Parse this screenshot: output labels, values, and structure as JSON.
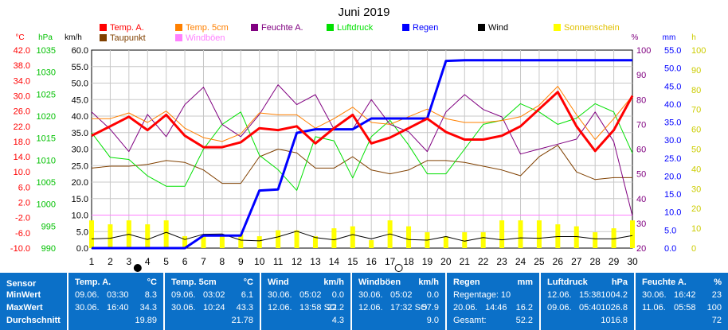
{
  "title": "Juni 2019",
  "axes": {
    "temp_unit": "°C",
    "press_unit": "hPa",
    "wind_unit": "km/h",
    "humidity_unit": "%",
    "rain_unit": "mm",
    "sun_unit": "h",
    "temp_ticks": [
      "42.0",
      "38.0",
      "34.0",
      "30.0",
      "26.0",
      "22.0",
      "18.0",
      "14.0",
      "10.0",
      "6.0",
      "2.0",
      "-2.0",
      "-6.0",
      "-10.0"
    ],
    "press_ticks": [
      "1035",
      "1030",
      "1025",
      "1020",
      "1015",
      "1010",
      "1005",
      "1000",
      "995",
      "990"
    ],
    "wind_ticks": [
      "60.0",
      "55.0",
      "50.0",
      "45.0",
      "40.0",
      "35.0",
      "30.0",
      "25.0",
      "20.0",
      "15.0",
      "10.0",
      "5.0",
      "0.0"
    ],
    "humidity_ticks": [
      "100",
      "90",
      "80",
      "70",
      "60",
      "50",
      "40",
      "30",
      "20"
    ],
    "rain_ticks": [
      "55.0",
      "50.0",
      "45.0",
      "40.0",
      "35.0",
      "30.0",
      "25.0",
      "20.0",
      "15.0",
      "10.0",
      "5.0",
      "0.0"
    ],
    "sun_ticks": [
      "100",
      "90",
      "80",
      "70",
      "60",
      "50",
      "40",
      "30",
      "20",
      "10",
      "0"
    ]
  },
  "legend": [
    {
      "label": "Temp. A.",
      "color": "#ff0000"
    },
    {
      "label": "Temp. 5cm",
      "color": "#ff8000"
    },
    {
      "label": "Feuchte A.",
      "color": "#800080"
    },
    {
      "label": "Luftdruck",
      "color": "#00e000"
    },
    {
      "label": "Regen",
      "color": "#0000ff"
    },
    {
      "label": "Wind",
      "color": "#000000"
    },
    {
      "label": "Sonnenschein",
      "color": "#ffff00"
    },
    {
      "label": "Taupunkt",
      "color": "#804000"
    },
    {
      "label": "Windböen",
      "color": "#ff80ff"
    }
  ],
  "chart_data": {
    "type": "line",
    "title": "Juni 2019",
    "x": [
      1,
      2,
      3,
      4,
      5,
      6,
      7,
      8,
      9,
      10,
      11,
      12,
      13,
      14,
      15,
      16,
      17,
      18,
      19,
      20,
      21,
      22,
      23,
      24,
      25,
      26,
      27,
      28,
      29,
      30
    ],
    "xlim": [
      1,
      30
    ],
    "series": [
      {
        "name": "Temp. A.",
        "unit": "°C",
        "color": "#ff0000",
        "values": [
          19.5,
          22.0,
          24.5,
          21.0,
          25.0,
          19.5,
          16.5,
          16.5,
          17.8,
          21.5,
          21.0,
          22.0,
          17.5,
          21.5,
          25.0,
          17.5,
          19.0,
          21.5,
          24.0,
          20.5,
          18.5,
          18.5,
          19.5,
          22.0,
          26.5,
          31.0,
          22.0,
          15.5,
          21.0,
          30.0
        ]
      },
      {
        "name": "Temp. 5cm",
        "unit": "°C",
        "color": "#ff8000",
        "values": [
          24.0,
          24.0,
          25.5,
          23.0,
          26.0,
          21.5,
          19.0,
          18.0,
          20.0,
          25.5,
          25.0,
          25.0,
          21.5,
          24.0,
          27.0,
          23.0,
          22.5,
          24.5,
          26.5,
          24.0,
          23.0,
          23.0,
          23.5,
          24.5,
          27.5,
          32.5,
          25.0,
          18.5,
          24.0,
          30.0
        ]
      },
      {
        "name": "Feuchte A.",
        "unit": "%",
        "color": "#800080",
        "values": [
          75,
          68,
          59,
          74,
          65,
          78,
          85,
          70,
          65,
          74,
          86,
          78,
          82,
          68,
          68,
          80,
          70,
          67,
          59,
          75,
          82,
          76,
          73,
          58,
          60,
          62,
          64,
          75,
          63,
          33
        ]
      },
      {
        "name": "Luftdruck",
        "unit": "hPa",
        "color": "#00e000",
        "values": [
          1018.0,
          1012.0,
          1011.5,
          1007.5,
          1005.0,
          1005.0,
          1014.0,
          1020.0,
          1023.0,
          1012.5,
          1009.0,
          1004.0,
          1017.0,
          1016.0,
          1007.0,
          1017.0,
          1021.0,
          1015.0,
          1008.0,
          1008.0,
          1014.0,
          1020.0,
          1021.0,
          1025.0,
          1023.0,
          1020.0,
          1021.5,
          1025.0,
          1023.0,
          1013.0
        ]
      },
      {
        "name": "Regen",
        "unit": "mm",
        "color": "#0000ff",
        "values": [
          0.0,
          0.0,
          0.0,
          0.0,
          0.0,
          0.0,
          3.5,
          3.5,
          3.5,
          16.0,
          16.3,
          32.0,
          33.0,
          33.0,
          33.0,
          36.0,
          36.0,
          36.0,
          36.0,
          52.0,
          52.2,
          52.2,
          52.2,
          52.2,
          52.2,
          52.2,
          52.2,
          52.2,
          52.2,
          52.2
        ]
      },
      {
        "name": "Wind",
        "unit": "km/h",
        "color": "#000000",
        "values": [
          2.8,
          3.0,
          4.2,
          2.6,
          4.8,
          2.6,
          4.2,
          4.3,
          2.4,
          2.2,
          3.4,
          5.1,
          3.2,
          2.5,
          4.1,
          2.8,
          4.3,
          2.6,
          2.4,
          3.5,
          2.1,
          3.2,
          2.5,
          3.1,
          3.0,
          3.5,
          3.5,
          2.8,
          2.8,
          3.8
        ]
      },
      {
        "name": "Windböen",
        "unit": "km/h",
        "color": "#ff80ff",
        "values": [
          10.0,
          10.0,
          10.0,
          10.0,
          10.0,
          10.0,
          10.0,
          10.0,
          10.0,
          10.0,
          10.0,
          10.0,
          10.0,
          10.0,
          10.0,
          10.0,
          10.0,
          10.0,
          10.0,
          10.0,
          10.0,
          10.0,
          10.0,
          10.0,
          10.0,
          10.0,
          10.0,
          10.0,
          10.0,
          10.0
        ]
      },
      {
        "name": "Taupunkt",
        "unit": "°C",
        "color": "#804000",
        "values": [
          11.0,
          11.5,
          11.5,
          12.0,
          13.0,
          12.5,
          10.5,
          7.0,
          7.0,
          14.0,
          16.0,
          15.0,
          11.0,
          11.0,
          14.0,
          10.5,
          9.5,
          10.5,
          13.0,
          13.0,
          12.5,
          11.5,
          10.5,
          9.0,
          14.0,
          17.0,
          10.0,
          8.0,
          8.5,
          8.5
        ]
      },
      {
        "name": "Sonnenschein",
        "unit": "h",
        "color": "#ffff00",
        "values": [
          14,
          12,
          14,
          12,
          14,
          6,
          6,
          7,
          7,
          6,
          9,
          9,
          6,
          10,
          11,
          4,
          14,
          11,
          8,
          6,
          8,
          8,
          14,
          14,
          14,
          12,
          11,
          8,
          10,
          14
        ]
      }
    ],
    "markers": [
      {
        "day": 3,
        "symbol": "●",
        "meaning": "new moon"
      },
      {
        "day": 17,
        "symbol": "○",
        "meaning": "full moon"
      }
    ],
    "ranges": {
      "temp": [
        -10,
        42
      ],
      "pressure": [
        990,
        1038
      ],
      "wind": [
        0,
        60
      ],
      "humidity": [
        20,
        100
      ],
      "rain": [
        0,
        55
      ],
      "sun": [
        0,
        100
      ]
    },
    "grid": true,
    "legend": "top"
  },
  "stats": {
    "sensor": {
      "title": "Sensor",
      "rows": [
        "MinWert",
        "MaxWert",
        "Durchschnitt"
      ]
    },
    "panels": [
      {
        "title": "Temp. A.",
        "unit": "°C",
        "rows": [
          [
            "09.06.",
            "03:30",
            "8.3"
          ],
          [
            "30.06.",
            "16:40",
            "34.3"
          ],
          [
            "",
            "",
            "19.89"
          ]
        ]
      },
      {
        "title": "Temp. 5cm",
        "unit": "°C",
        "rows": [
          [
            "09.06.",
            "03:02",
            "6.1"
          ],
          [
            "30.06.",
            "10:24",
            "43.3"
          ],
          [
            "",
            "",
            "21.78"
          ]
        ]
      },
      {
        "title": "Wind",
        "unit": "km/h",
        "rows": [
          [
            "30.06.",
            "05:02",
            "0.0"
          ],
          [
            "12.06.",
            "13:58 SO",
            "22.2"
          ],
          [
            "",
            "",
            "4.3"
          ]
        ]
      },
      {
        "title": "Windböen",
        "unit": "km/h",
        "rows": [
          [
            "30.06.",
            "05:02",
            "0.0"
          ],
          [
            "12.06.",
            "17:32 SO",
            "57.9"
          ],
          [
            "",
            "",
            "9.0"
          ]
        ]
      },
      {
        "title": "Regen",
        "unit": "mm",
        "rows": [
          [
            "Regentage: 10",
            "",
            ""
          ],
          [
            "20.06.",
            "14:46",
            "16.2"
          ],
          [
            "Gesamt:",
            "",
            "52.2"
          ]
        ]
      },
      {
        "title": "Luftdruck",
        "unit": "hPa",
        "rows": [
          [
            "12.06.",
            "15:38",
            "1004.2"
          ],
          [
            "09.06.",
            "05:40",
            "1026.8"
          ],
          [
            "",
            "",
            "1016.8"
          ]
        ]
      },
      {
        "title": "Feuchte A.",
        "unit": "%",
        "rows": [
          [
            "30.06.",
            "16:42",
            "23"
          ],
          [
            "11.06.",
            "05:58",
            "100"
          ],
          [
            "",
            "",
            "72"
          ]
        ]
      }
    ]
  }
}
